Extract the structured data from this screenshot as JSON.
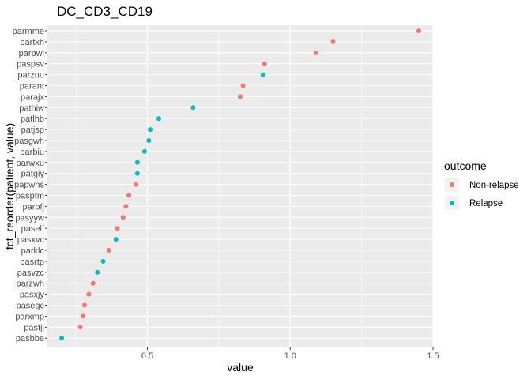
{
  "chart_data": {
    "type": "scatter",
    "title": "DC_CD3_CD19",
    "xlabel": "value",
    "ylabel": "fct_reorder(patient, value)",
    "xlim": [
      0.15,
      1.5
    ],
    "xticks": [
      0.5,
      1.0,
      1.5
    ],
    "xtick_labels": [
      "0.5",
      "1.0",
      "1.5"
    ],
    "grid": true,
    "legend": {
      "title": "outcome",
      "placement": "right",
      "entries": [
        {
          "name": "Non-relapse",
          "color": "#F8766D"
        },
        {
          "name": "Relapse",
          "color": "#00BFC4"
        }
      ]
    },
    "colors": {
      "Non-relapse": "#F8766D",
      "Relapse": "#00BFC4",
      "panel": "#EBEBEB",
      "grid": "#FFFFFF"
    },
    "categories": [
      "parmme",
      "partxh",
      "parpwl",
      "paspsv",
      "parzuu",
      "parant",
      "parajx",
      "pathiw",
      "patlhb",
      "patjsp",
      "pasgwh",
      "parbiu",
      "parwxu",
      "patgiy",
      "papwhs",
      "pasptm",
      "parbfj",
      "pasyyw",
      "paself",
      "pasxvc",
      "parklc",
      "pasrtp",
      "pasvzc",
      "parzwh",
      "pasxjy",
      "pasegc",
      "parxmp",
      "pasfjj",
      "pasbbe"
    ],
    "points": [
      {
        "patient": "parmme",
        "value": 1.45,
        "outcome": "Non-relapse"
      },
      {
        "patient": "partxh",
        "value": 1.15,
        "outcome": "Non-relapse"
      },
      {
        "patient": "parpwl",
        "value": 1.09,
        "outcome": "Non-relapse"
      },
      {
        "patient": "paspsv",
        "value": 0.91,
        "outcome": "Non-relapse"
      },
      {
        "patient": "parzuu",
        "value": 0.905,
        "outcome": "Relapse"
      },
      {
        "patient": "parant",
        "value": 0.835,
        "outcome": "Non-relapse"
      },
      {
        "patient": "parajx",
        "value": 0.825,
        "outcome": "Non-relapse"
      },
      {
        "patient": "pathiw",
        "value": 0.66,
        "outcome": "Relapse"
      },
      {
        "patient": "patlhb",
        "value": 0.54,
        "outcome": "Relapse"
      },
      {
        "patient": "patjsp",
        "value": 0.51,
        "outcome": "Relapse"
      },
      {
        "patient": "pasgwh",
        "value": 0.505,
        "outcome": "Relapse"
      },
      {
        "patient": "parbiu",
        "value": 0.49,
        "outcome": "Relapse"
      },
      {
        "patient": "parwxu",
        "value": 0.465,
        "outcome": "Relapse"
      },
      {
        "patient": "patgiy",
        "value": 0.465,
        "outcome": "Relapse"
      },
      {
        "patient": "papwhs",
        "value": 0.46,
        "outcome": "Non-relapse"
      },
      {
        "patient": "pasptm",
        "value": 0.435,
        "outcome": "Non-relapse"
      },
      {
        "patient": "parbfj",
        "value": 0.425,
        "outcome": "Non-relapse"
      },
      {
        "patient": "pasyyw",
        "value": 0.415,
        "outcome": "Non-relapse"
      },
      {
        "patient": "paself",
        "value": 0.395,
        "outcome": "Non-relapse"
      },
      {
        "patient": "pasxvc",
        "value": 0.39,
        "outcome": "Relapse"
      },
      {
        "patient": "parklc",
        "value": 0.365,
        "outcome": "Non-relapse"
      },
      {
        "patient": "pasrtp",
        "value": 0.345,
        "outcome": "Relapse"
      },
      {
        "patient": "pasvzc",
        "value": 0.325,
        "outcome": "Relapse"
      },
      {
        "patient": "parzwh",
        "value": 0.31,
        "outcome": "Non-relapse"
      },
      {
        "patient": "pasxjy",
        "value": 0.295,
        "outcome": "Non-relapse"
      },
      {
        "patient": "pasegc",
        "value": 0.28,
        "outcome": "Non-relapse"
      },
      {
        "patient": "parxmp",
        "value": 0.275,
        "outcome": "Non-relapse"
      },
      {
        "patient": "pasfjj",
        "value": 0.265,
        "outcome": "Non-relapse"
      },
      {
        "patient": "pasbbe",
        "value": 0.2,
        "outcome": "Relapse"
      }
    ]
  }
}
